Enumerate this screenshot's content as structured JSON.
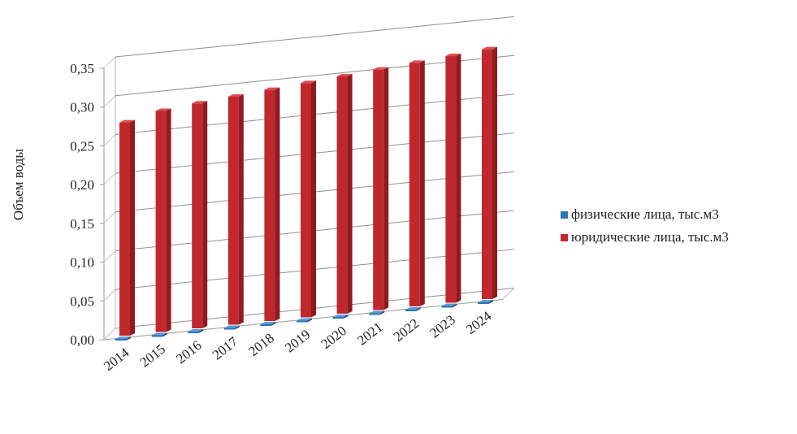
{
  "chart_data": {
    "type": "bar",
    "ylabel": "Объем воды",
    "ylim": [
      0,
      0.35
    ],
    "yticks": [
      "0,00",
      "0,05",
      "0,10",
      "0,15",
      "0,20",
      "0,25",
      "0,30",
      "0,35"
    ],
    "categories": [
      "2014",
      "2015",
      "2016",
      "2017",
      "2018",
      "2019",
      "2020",
      "2021",
      "2022",
      "2023",
      "2024"
    ],
    "series": [
      {
        "name": "физические лица, тыс.м3",
        "color": "#2e75b6",
        "values": [
          0.002,
          0.002,
          0.002,
          0.002,
          0.002,
          0.002,
          0.002,
          0.002,
          0.002,
          0.002,
          0.002
        ]
      },
      {
        "name": "юридические лица, тыс.м3",
        "color": "#c0282d",
        "values": [
          0.275,
          0.285,
          0.29,
          0.294,
          0.298,
          0.302,
          0.306,
          0.31,
          0.314,
          0.318,
          0.322
        ]
      }
    ],
    "grid": true,
    "legend": "right",
    "style": "3d-column"
  }
}
